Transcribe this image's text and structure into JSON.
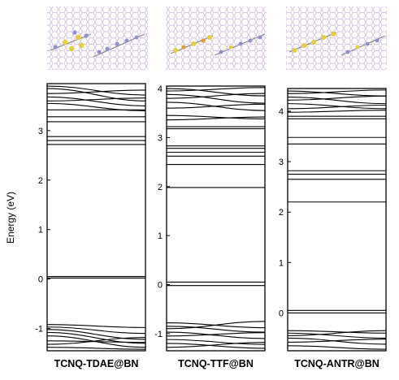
{
  "chart_data": {
    "type": "line",
    "ylabel": "Energy (eV)",
    "panels": [
      {
        "name": "TCNQ-TDAE@BN",
        "ylim": [
          -1.45,
          3.95
        ],
        "yticks": [
          -1,
          0,
          1,
          2,
          3
        ],
        "flat_levels": [
          0.02,
          0.05,
          2.72,
          2.8,
          2.88,
          3.18,
          3.28,
          3.42
        ],
        "curves": [
          [
            -0.92,
            -0.98
          ],
          [
            -0.97,
            -1.1
          ],
          [
            -1.02,
            -1.22
          ],
          [
            -1.08,
            -1.3
          ],
          [
            -1.15,
            -1.38
          ],
          [
            -1.25,
            -1.28
          ],
          [
            -1.32,
            -1.18
          ],
          [
            -1.38,
            -1.42
          ],
          [
            3.9,
            3.72
          ],
          [
            3.85,
            3.6
          ],
          [
            3.75,
            3.82
          ],
          [
            3.68,
            3.5
          ],
          [
            3.6,
            3.66
          ],
          [
            3.55,
            3.4
          ]
        ]
      },
      {
        "name": "TCNQ-TTF@BN",
        "ylim": [
          -1.35,
          4.05
        ],
        "yticks": [
          -1,
          0,
          1,
          2,
          3,
          4
        ],
        "flat_levels": [
          -0.02,
          0.05,
          1.98,
          2.45,
          2.62,
          2.7,
          2.78,
          2.83,
          3.18,
          3.22
        ],
        "curves": [
          [
            -0.78,
            -0.88
          ],
          [
            -0.85,
            -0.97
          ],
          [
            -0.9,
            -0.75
          ],
          [
            -0.97,
            -1.1
          ],
          [
            -1.05,
            -0.98
          ],
          [
            -1.12,
            -1.22
          ],
          [
            -1.2,
            -1.3
          ],
          [
            -1.28,
            -1.18
          ],
          [
            4.0,
            3.85
          ],
          [
            3.95,
            4.02
          ],
          [
            3.88,
            3.7
          ],
          [
            3.8,
            3.9
          ],
          [
            3.72,
            3.55
          ],
          [
            3.6,
            3.68
          ],
          [
            3.45,
            3.38
          ],
          [
            3.36,
            3.42
          ]
        ]
      },
      {
        "name": "TCNQ-ANTR@BN",
        "ylim": [
          -0.75,
          4.45
        ],
        "yticks": [
          0,
          1,
          2,
          3,
          4
        ],
        "flat_levels": [
          0.0,
          0.05,
          2.2,
          2.65,
          2.75,
          2.82,
          3.35,
          3.48,
          3.85,
          3.9
        ],
        "curves": [
          [
            -0.35,
            -0.4
          ],
          [
            -0.4,
            -0.5
          ],
          [
            -0.45,
            -0.35
          ],
          [
            -0.5,
            -0.62
          ],
          [
            -0.58,
            -0.52
          ],
          [
            -0.65,
            -0.72
          ],
          [
            4.4,
            4.3
          ],
          [
            4.35,
            4.42
          ],
          [
            4.28,
            4.15
          ],
          [
            4.22,
            4.3
          ],
          [
            4.15,
            4.05
          ],
          [
            4.05,
            4.12
          ],
          [
            3.98,
            4.02
          ]
        ]
      }
    ]
  }
}
